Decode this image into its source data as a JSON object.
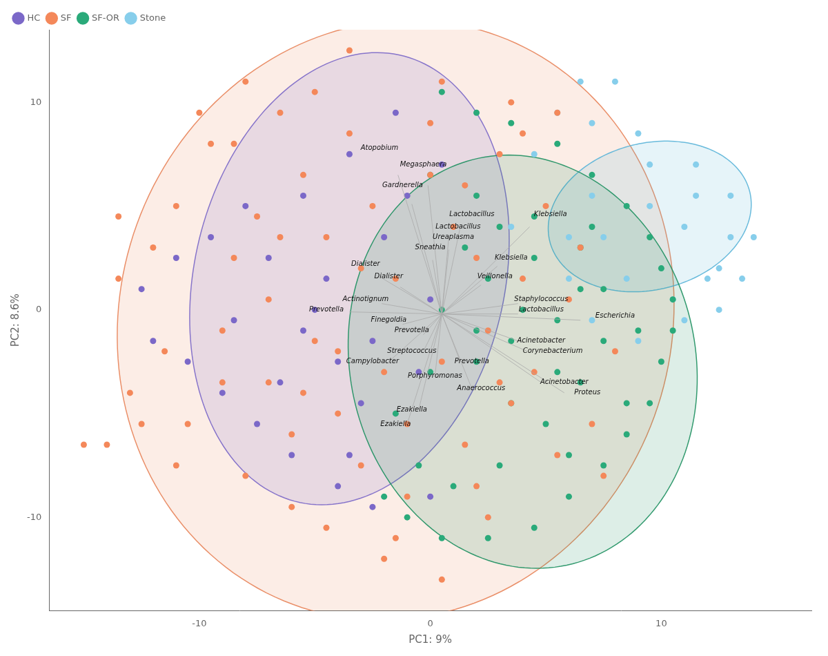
{
  "chart_data": {
    "type": "scatter",
    "xlabel": "PC1: 9%",
    "ylabel": "PC2: 8.6%",
    "xlim": [
      -16.5,
      16.5
    ],
    "ylim": [
      -14.5,
      13.5
    ],
    "xticks": [
      -10,
      0,
      10
    ],
    "yticks": [
      -10,
      0,
      10
    ],
    "grid": false,
    "legend": "upper left",
    "series": [
      {
        "name": "HC",
        "color": "#7b68c8",
        "values": [
          [
            -1.5,
            9.5
          ],
          [
            -3.5,
            7.5
          ],
          [
            -5.5,
            5.5
          ],
          [
            -8.0,
            5.0
          ],
          [
            -9.5,
            3.5
          ],
          [
            -11.0,
            2.5
          ],
          [
            -12.5,
            1.0
          ],
          [
            -12.0,
            -1.5
          ],
          [
            -10.5,
            -2.5
          ],
          [
            -9.0,
            -4.0
          ],
          [
            -7.5,
            -5.5
          ],
          [
            -6.0,
            -7.0
          ],
          [
            -4.0,
            -8.5
          ],
          [
            -2.5,
            -9.5
          ],
          [
            0.0,
            -9.0
          ],
          [
            -2.0,
            3.5
          ],
          [
            -4.5,
            1.5
          ],
          [
            -5.5,
            -1.0
          ],
          [
            -3.0,
            -4.5
          ],
          [
            -0.5,
            -3.0
          ],
          [
            -1.0,
            5.5
          ],
          [
            0.5,
            7.0
          ],
          [
            -5.0,
            0.0
          ],
          [
            -2.5,
            -1.5
          ],
          [
            0.0,
            0.5
          ],
          [
            -7.0,
            2.5
          ],
          [
            -8.5,
            -0.5
          ],
          [
            -4.0,
            -2.5
          ],
          [
            -6.5,
            -3.5
          ],
          [
            -3.5,
            -7.0
          ]
        ]
      },
      {
        "name": "SF",
        "color": "#f4885a",
        "values": [
          [
            -14.0,
            -6.5
          ],
          [
            -13.5,
            1.5
          ],
          [
            -13.0,
            -4.0
          ],
          [
            -12.0,
            3.0
          ],
          [
            -11.5,
            -2.0
          ],
          [
            -11.0,
            5.0
          ],
          [
            -10.5,
            -5.5
          ],
          [
            -9.5,
            8.0
          ],
          [
            -9.0,
            -1.0
          ],
          [
            -8.5,
            2.5
          ],
          [
            -8.0,
            -8.0
          ],
          [
            -7.5,
            4.5
          ],
          [
            -7.0,
            -3.5
          ],
          [
            -6.5,
            9.5
          ],
          [
            -6.0,
            -6.0
          ],
          [
            -5.5,
            6.5
          ],
          [
            -5.0,
            -1.5
          ],
          [
            -4.5,
            3.5
          ],
          [
            -4.0,
            -5.0
          ],
          [
            -3.5,
            8.5
          ],
          [
            -3.0,
            -7.5
          ],
          [
            -2.5,
            5.0
          ],
          [
            -2.0,
            -3.0
          ],
          [
            -1.5,
            1.5
          ],
          [
            -1.0,
            -9.0
          ],
          [
            0.0,
            6.5
          ],
          [
            0.5,
            -2.5
          ],
          [
            1.0,
            4.0
          ],
          [
            1.5,
            -6.5
          ],
          [
            2.0,
            2.5
          ],
          [
            2.5,
            -1.0
          ],
          [
            3.0,
            7.5
          ],
          [
            3.5,
            -4.5
          ],
          [
            4.0,
            1.5
          ],
          [
            4.5,
            -3.0
          ],
          [
            5.0,
            5.0
          ],
          [
            5.5,
            -7.0
          ],
          [
            6.0,
            0.5
          ],
          [
            -15.0,
            -6.5
          ],
          [
            0.5,
            -13.0
          ],
          [
            -8.0,
            11.0
          ],
          [
            -5.0,
            10.5
          ],
          [
            3.5,
            10.0
          ],
          [
            -2.0,
            -12.0
          ],
          [
            7.0,
            -5.5
          ],
          [
            -10.0,
            9.5
          ],
          [
            -12.5,
            -5.5
          ],
          [
            2.0,
            -8.5
          ],
          [
            -6.0,
            -9.5
          ],
          [
            0.0,
            9.0
          ],
          [
            4.0,
            8.5
          ],
          [
            -3.0,
            2.0
          ],
          [
            -1.0,
            -5.5
          ],
          [
            6.5,
            3.0
          ],
          [
            -4.0,
            -2.0
          ],
          [
            -9.0,
            -3.5
          ],
          [
            1.5,
            6.0
          ],
          [
            -7.0,
            0.5
          ],
          [
            2.5,
            -10.0
          ],
          [
            -5.5,
            -4.0
          ],
          [
            8.0,
            -2.0
          ],
          [
            -6.5,
            3.5
          ],
          [
            3.0,
            -3.5
          ],
          [
            -11.0,
            -7.5
          ],
          [
            -13.5,
            4.5
          ],
          [
            0.5,
            11.0
          ],
          [
            -3.5,
            12.5
          ],
          [
            -8.5,
            8.0
          ],
          [
            5.5,
            9.5
          ],
          [
            -1.5,
            -11.0
          ],
          [
            -4.5,
            -10.5
          ],
          [
            7.5,
            -8.0
          ]
        ]
      },
      {
        "name": "SF-OR",
        "color": "#2aaa7a",
        "values": [
          [
            0.5,
            10.5
          ],
          [
            2.0,
            9.5
          ],
          [
            3.5,
            9.0
          ],
          [
            5.5,
            8.0
          ],
          [
            7.0,
            6.5
          ],
          [
            8.5,
            5.0
          ],
          [
            9.5,
            3.5
          ],
          [
            10.0,
            2.0
          ],
          [
            10.5,
            0.5
          ],
          [
            10.5,
            -1.0
          ],
          [
            10.0,
            -2.5
          ],
          [
            9.5,
            -4.5
          ],
          [
            8.5,
            -6.0
          ],
          [
            7.5,
            -7.5
          ],
          [
            6.0,
            -9.0
          ],
          [
            4.5,
            -10.5
          ],
          [
            2.5,
            -11.0
          ],
          [
            0.5,
            -11.0
          ],
          [
            -1.0,
            -10.0
          ],
          [
            -2.0,
            -9.0
          ],
          [
            0.0,
            6.5
          ],
          [
            2.0,
            5.5
          ],
          [
            4.5,
            4.5
          ],
          [
            6.5,
            3.0
          ],
          [
            7.5,
            1.0
          ],
          [
            7.5,
            -1.5
          ],
          [
            6.5,
            -3.5
          ],
          [
            5.0,
            -5.5
          ],
          [
            3.0,
            -7.5
          ],
          [
            1.0,
            -8.5
          ],
          [
            -0.5,
            -7.5
          ],
          [
            2.0,
            -2.5
          ],
          [
            3.5,
            -1.5
          ],
          [
            5.5,
            -0.5
          ],
          [
            6.5,
            1.0
          ],
          [
            4.5,
            2.5
          ],
          [
            2.5,
            1.5
          ],
          [
            0.5,
            0.0
          ],
          [
            2.0,
            -1.0
          ],
          [
            4.0,
            0.0
          ],
          [
            8.5,
            -4.5
          ],
          [
            3.5,
            -4.5
          ],
          [
            -1.5,
            -5.0
          ],
          [
            9.0,
            -1.0
          ],
          [
            0.0,
            -3.0
          ],
          [
            5.5,
            -3.0
          ],
          [
            3.0,
            4.0
          ],
          [
            7.0,
            4.0
          ],
          [
            1.5,
            3.0
          ],
          [
            6.0,
            -7.0
          ]
        ]
      },
      {
        "name": "Stone",
        "color": "#87ceeb",
        "values": [
          [
            5.5,
            9.5
          ],
          [
            7.0,
            9.0
          ],
          [
            9.0,
            8.5
          ],
          [
            11.5,
            7.0
          ],
          [
            13.0,
            5.5
          ],
          [
            14.0,
            3.5
          ],
          [
            13.5,
            1.5
          ],
          [
            12.5,
            0.0
          ],
          [
            11.0,
            -0.5
          ],
          [
            9.0,
            -1.5
          ],
          [
            7.0,
            -0.5
          ],
          [
            6.0,
            1.5
          ],
          [
            6.0,
            3.5
          ],
          [
            7.0,
            5.5
          ],
          [
            9.5,
            7.0
          ],
          [
            11.5,
            5.5
          ],
          [
            13.0,
            3.5
          ],
          [
            12.0,
            1.5
          ],
          [
            10.5,
            0.5
          ],
          [
            8.5,
            1.5
          ],
          [
            7.5,
            3.5
          ],
          [
            9.5,
            5.0
          ],
          [
            11.0,
            4.0
          ],
          [
            12.5,
            2.0
          ],
          [
            4.5,
            7.5
          ],
          [
            6.5,
            11.0
          ],
          [
            3.5,
            4.0
          ],
          [
            8.0,
            11.0
          ]
        ]
      }
    ],
    "ellipses": [
      {
        "group": "SF",
        "cx": -1.5,
        "cy": -0.5,
        "w": 24.0,
        "h": 29.0,
        "angle": -8,
        "color": "#e8845a"
      },
      {
        "group": "HC",
        "cx": -3.5,
        "cy": 1.5,
        "w": 13.5,
        "h": 22.0,
        "angle": -10,
        "color": "#7b68c8"
      },
      {
        "group": "Stone",
        "cx": 9.5,
        "cy": 4.5,
        "w": 9.0,
        "h": 7.0,
        "angle": 20,
        "color": "#5ab4d8"
      },
      {
        "group": "SF-OR",
        "cx": 4.0,
        "cy": -2.5,
        "w": 15.0,
        "h": 20.0,
        "angle": 8,
        "color": "#1e9060"
      }
    ],
    "arrow_origin": [
      0.5,
      -0.2
    ],
    "arrows": [
      {
        "label": "Atopobium",
        "label_x": -2.2,
        "label_y": 7.8,
        "x": -1.4,
        "y": 6.5
      },
      {
        "label": "Megasphaera",
        "label_x": -0.3,
        "label_y": 7.0,
        "x": -0.1,
        "y": 6.0
      },
      {
        "label": "Gardnerella",
        "label_x": -1.2,
        "label_y": 6.0,
        "x": -0.8,
        "y": 5.1
      },
      {
        "label": "Lactobacillus",
        "label_x": 1.8,
        "label_y": 4.6,
        "x": 1.3,
        "y": 4.0
      },
      {
        "label": "Lactobacillus",
        "label_x": 1.2,
        "label_y": 4.0,
        "x": 0.8,
        "y": 3.5
      },
      {
        "label": "Klebsiella",
        "label_x": 5.2,
        "label_y": 4.6,
        "x": 4.3,
        "y": 4.0
      },
      {
        "label": "Ureaplasma",
        "label_x": 1.0,
        "label_y": 3.5,
        "x": 0.8,
        "y": 2.9
      },
      {
        "label": "Sneathia",
        "label_x": 0.0,
        "label_y": 3.0,
        "x": 0.1,
        "y": 2.4
      },
      {
        "label": "Klebsiella",
        "label_x": 3.5,
        "label_y": 2.5,
        "x": 2.9,
        "y": 2.1
      },
      {
        "label": "Dialister",
        "label_x": -2.8,
        "label_y": 2.2,
        "x": -2.2,
        "y": 1.6
      },
      {
        "label": "Dialister",
        "label_x": -1.8,
        "label_y": 1.6,
        "x": -1.3,
        "y": 1.1
      },
      {
        "label": "Veillonella",
        "label_x": 2.8,
        "label_y": 1.6,
        "x": 2.2,
        "y": 1.2
      },
      {
        "label": "Actinotignum",
        "label_x": -2.8,
        "label_y": 0.5,
        "x": -2.1,
        "y": 0.3
      },
      {
        "label": "Prevotella",
        "label_x": -4.5,
        "label_y": 0.0,
        "x": -3.5,
        "y": -0.1
      },
      {
        "label": "Staphylococcus",
        "label_x": 4.8,
        "label_y": 0.5,
        "x": 3.8,
        "y": 0.3
      },
      {
        "label": "Lactobacillus",
        "label_x": 4.8,
        "label_y": 0.0,
        "x": 3.8,
        "y": -0.2
      },
      {
        "label": "Finegoldia",
        "label_x": -1.8,
        "label_y": -0.5,
        "x": -1.2,
        "y": -0.7
      },
      {
        "label": "Prevotella",
        "label_x": -0.8,
        "label_y": -1.0,
        "x": -0.3,
        "y": -1.2
      },
      {
        "label": "Escherichia",
        "label_x": 8.0,
        "label_y": -0.3,
        "x": 6.5,
        "y": -0.5
      },
      {
        "label": "Acinetobacter",
        "label_x": 4.8,
        "label_y": -1.5,
        "x": 3.8,
        "y": -1.5
      },
      {
        "label": "Streptococcus",
        "label_x": -0.8,
        "label_y": -2.0,
        "x": -0.3,
        "y": -2.0
      },
      {
        "label": "Corynebacterium",
        "label_x": 5.3,
        "label_y": -2.0,
        "x": 4.2,
        "y": -2.0
      },
      {
        "label": "Campylobacter",
        "label_x": -2.5,
        "label_y": -2.5,
        "x": -1.8,
        "y": -2.5
      },
      {
        "label": "Prevotella",
        "label_x": 1.8,
        "label_y": -2.5,
        "x": 1.3,
        "y": -2.5
      },
      {
        "label": "Porphyromonas",
        "label_x": 0.2,
        "label_y": -3.2,
        "x": 0.2,
        "y": -3.2
      },
      {
        "label": "Anaerococcus",
        "label_x": 2.2,
        "label_y": -3.8,
        "x": 1.8,
        "y": -3.8
      },
      {
        "label": "Acinetobacter",
        "label_x": 5.8,
        "label_y": -3.5,
        "x": 4.8,
        "y": -3.5
      },
      {
        "label": "Proteus",
        "label_x": 6.8,
        "label_y": -4.0,
        "x": 5.8,
        "y": -4.0
      },
      {
        "label": "Ezakiella",
        "label_x": -0.8,
        "label_y": -4.8,
        "x": -0.5,
        "y": -4.8
      },
      {
        "label": "Ezakiella",
        "label_x": -1.5,
        "label_y": -5.5,
        "x": -1.0,
        "y": -5.5
      }
    ]
  }
}
